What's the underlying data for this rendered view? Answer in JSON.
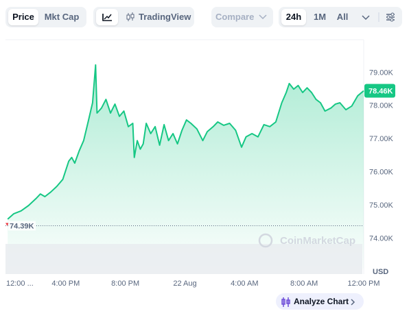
{
  "toolbar": {
    "type_tabs": [
      "Price",
      "Mkt Cap"
    ],
    "tradingview": "TradingView",
    "compare": "Compare",
    "ranges": [
      "24h",
      "1M",
      "All"
    ]
  },
  "analyze_button": "Analyze Chart",
  "chart_data": {
    "type": "line",
    "color": "#16c784",
    "grid": false,
    "watermark": "CoinMarketCap",
    "y_unit": "USD",
    "x": [
      0.1,
      0.5,
      1.0,
      1.5,
      2.0,
      2.3,
      2.6,
      3.0,
      3.4,
      3.8,
      4.2,
      4.4,
      4.6,
      4.9,
      5.2,
      5.5,
      5.8,
      6.0,
      6.1,
      6.4,
      6.7,
      7.0,
      7.3,
      7.6,
      7.9,
      8.2,
      8.5,
      8.6,
      8.8,
      9.0,
      9.2,
      9.4,
      9.7,
      10.0,
      10.3,
      10.6,
      10.9,
      11.2,
      11.5,
      11.8,
      12.1,
      12.4,
      12.8,
      13.2,
      13.5,
      13.9,
      14.2,
      14.6,
      15.0,
      15.4,
      15.8,
      16.1,
      16.5,
      16.9,
      17.3,
      17.7,
      18.1,
      18.5,
      18.8,
      19.0,
      19.3,
      19.6,
      19.9,
      20.2,
      20.5,
      20.8,
      21.1,
      21.4,
      21.8,
      22.1,
      22.4,
      22.8,
      23.2,
      23.6,
      24.0
    ],
    "values": [
      74590,
      74750,
      74840,
      75000,
      75210,
      75350,
      75270,
      75410,
      75580,
      75790,
      76340,
      76450,
      76280,
      76650,
      76960,
      77520,
      78100,
      79240,
      77790,
      77940,
      78200,
      77790,
      78060,
      77690,
      77850,
      77380,
      77480,
      76450,
      76960,
      76700,
      76860,
      77480,
      77170,
      77380,
      76820,
      77440,
      76960,
      77170,
      76860,
      77270,
      77580,
      77480,
      77310,
      76960,
      77230,
      77380,
      77520,
      77420,
      77480,
      77270,
      76760,
      77070,
      77170,
      77070,
      77440,
      77380,
      77520,
      78100,
      78410,
      78680,
      78510,
      78620,
      78410,
      78550,
      78410,
      78200,
      78100,
      77850,
      77940,
      78060,
      78100,
      77890,
      78000,
      78310,
      78460
    ],
    "xlim": [
      0,
      24
    ],
    "ylim": [
      73100,
      80000
    ],
    "xticks": [
      {
        "value": 0,
        "label": "12:00 ..."
      },
      {
        "value": 4,
        "label": "4:00 PM"
      },
      {
        "value": 8,
        "label": "8:00 PM"
      },
      {
        "value": 12,
        "label": "22 Aug"
      },
      {
        "value": 16,
        "label": "4:00 AM"
      },
      {
        "value": 20,
        "label": "8:00 AM"
      },
      {
        "value": 24,
        "label": "12:00 PM"
      }
    ],
    "yticks": [
      {
        "value": 74000,
        "label": "74.00K"
      },
      {
        "value": 75000,
        "label": "75.00K"
      },
      {
        "value": 76000,
        "label": "76.00K"
      },
      {
        "value": 77000,
        "label": "77.00K"
      },
      {
        "value": 78000,
        "label": "78.00K"
      },
      {
        "value": 79000,
        "label": "79.00K"
      }
    ],
    "reference_line": {
      "value": 74390,
      "label": "74.39K"
    },
    "last_price": {
      "value": 78460,
      "label": "78.46K"
    }
  }
}
